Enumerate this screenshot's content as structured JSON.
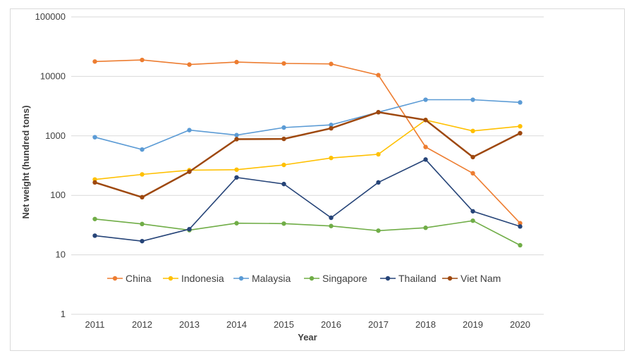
{
  "chart_data": {
    "type": "line",
    "title": "",
    "xlabel": "Year",
    "ylabel": "Net weight (hundred tons)",
    "yscale": "log",
    "ylim": [
      1,
      100000
    ],
    "yticks": [
      "1",
      "10",
      "100",
      "1000",
      "10000",
      "100000"
    ],
    "categories": [
      "2011",
      "2012",
      "2013",
      "2014",
      "2015",
      "2016",
      "2017",
      "2018",
      "2019",
      "2020"
    ],
    "grid": "horizontal",
    "legend_position": "bottom-inside",
    "series": [
      {
        "name": "China",
        "color": "#ED7D31",
        "values": [
          17800,
          18900,
          15800,
          17400,
          16500,
          16200,
          10500,
          650,
          235,
          34
        ]
      },
      {
        "name": "Indonesia",
        "color": "#FFC000",
        "values": [
          185,
          225,
          265,
          270,
          325,
          425,
          490,
          1850,
          1210,
          1450
        ]
      },
      {
        "name": "Malaysia",
        "color": "#5B9BD5",
        "values": [
          950,
          590,
          1250,
          1030,
          1380,
          1530,
          2500,
          4050,
          4050,
          3650
        ]
      },
      {
        "name": "Singapore",
        "color": "#70AD47",
        "values": [
          40,
          33,
          26,
          34,
          33.5,
          30.5,
          25.5,
          28.5,
          37.5,
          14.5
        ]
      },
      {
        "name": "Thailand",
        "color": "#264478",
        "values": [
          21,
          17,
          27,
          200,
          155,
          42,
          165,
          400,
          54,
          30
        ]
      },
      {
        "name": "Viet Nam",
        "color": "#9E480E",
        "values": [
          165,
          93,
          250,
          880,
          890,
          1340,
          2500,
          1850,
          440,
          1110
        ]
      }
    ]
  }
}
